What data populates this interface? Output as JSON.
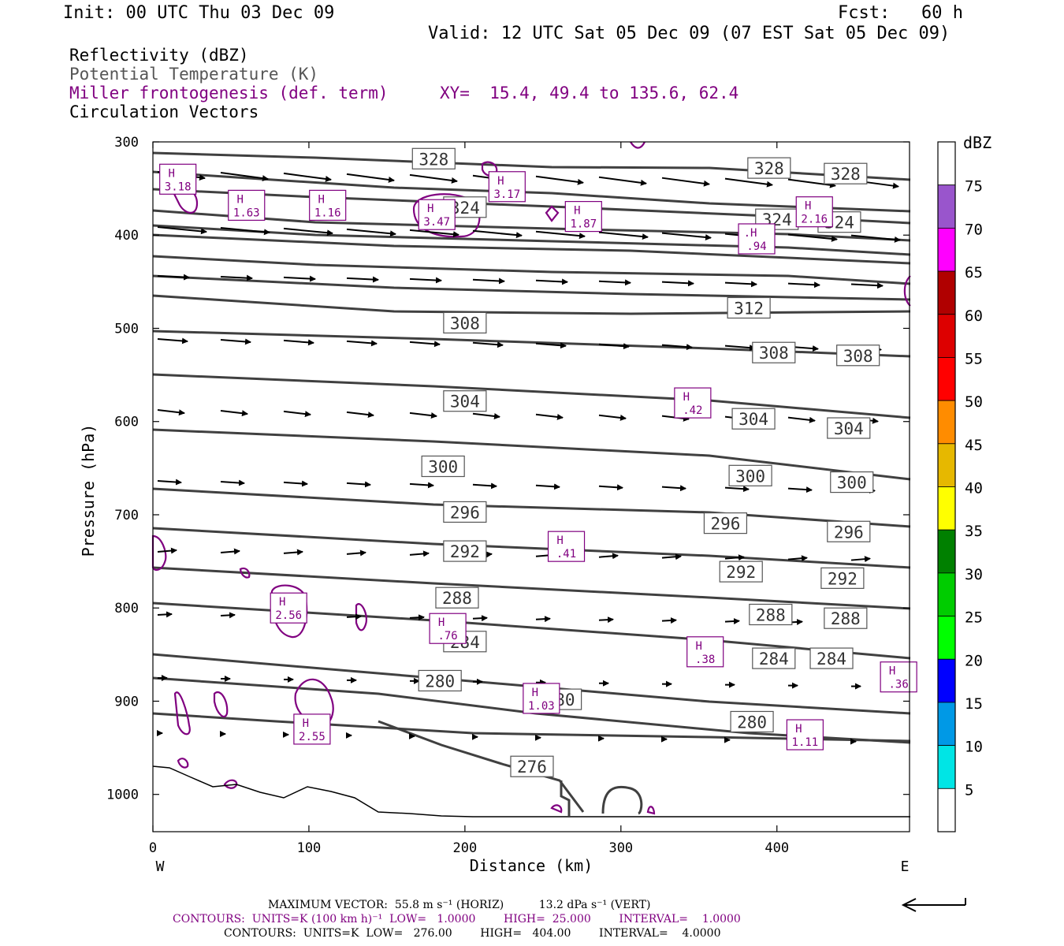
{
  "header": {
    "init": "Init: 00 UTC Thu 03 Dec 09",
    "fcst": "Fcst:   60 h",
    "valid": "Valid: 12 UTC Sat 05 Dec 09 (07 EST Sat 05 Dec 09)"
  },
  "legend": {
    "reflectivity": "Reflectivity (dBZ)",
    "theta": "Potential Temperature (K)",
    "frontogenesis": "Miller frontogenesis (def. term)",
    "xy": "XY=  15.4, 49.4 to 135.6, 62.4",
    "vectors": "Circulation Vectors"
  },
  "colors": {
    "theta": "#404040",
    "frontogenesis": "#800080",
    "terrain": "#000000"
  },
  "chart_data": {
    "type": "cross-section",
    "xlabel": "Distance (km)",
    "ylabel": "Pressure (hPa)",
    "xlim": [
      0,
      485
    ],
    "ylim": [
      1040,
      300
    ],
    "x_ticks": [
      0,
      100,
      200,
      300,
      400
    ],
    "y_ticks": [
      300,
      400,
      500,
      600,
      700,
      800,
      900,
      1000
    ],
    "x_left_label": "W",
    "x_right_label": "E",
    "theta_labels": [
      {
        "text": "328",
        "x": 180,
        "p": 318
      },
      {
        "text": "328",
        "x": 395,
        "p": 328
      },
      {
        "text": "328",
        "x": 444,
        "p": 334
      },
      {
        "text": "324",
        "x": 200,
        "p": 370
      },
      {
        "text": "324",
        "x": 400,
        "p": 383
      },
      {
        "text": "324",
        "x": 440,
        "p": 386
      },
      {
        "text": "312",
        "x": 382,
        "p": 478
      },
      {
        "text": "308",
        "x": 200,
        "p": 494
      },
      {
        "text": "308",
        "x": 398,
        "p": 526
      },
      {
        "text": "308",
        "x": 452,
        "p": 529
      },
      {
        "text": "304",
        "x": 200,
        "p": 578
      },
      {
        "text": "304",
        "x": 385,
        "p": 597
      },
      {
        "text": "304",
        "x": 446,
        "p": 607
      },
      {
        "text": "300",
        "x": 186,
        "p": 648
      },
      {
        "text": "300",
        "x": 383,
        "p": 658
      },
      {
        "text": "300",
        "x": 448,
        "p": 665
      },
      {
        "text": "296",
        "x": 200,
        "p": 697
      },
      {
        "text": "296",
        "x": 367,
        "p": 709
      },
      {
        "text": "296",
        "x": 446,
        "p": 718
      },
      {
        "text": "292",
        "x": 200,
        "p": 739
      },
      {
        "text": "292",
        "x": 377,
        "p": 761
      },
      {
        "text": "292",
        "x": 442,
        "p": 768
      },
      {
        "text": "288",
        "x": 195,
        "p": 789
      },
      {
        "text": "288",
        "x": 396,
        "p": 807
      },
      {
        "text": "288",
        "x": 444,
        "p": 811
      },
      {
        "text": "284",
        "x": 200,
        "p": 836
      },
      {
        "text": "284",
        "x": 398,
        "p": 854
      },
      {
        "text": "284",
        "x": 435,
        "p": 854
      },
      {
        "text": "280",
        "x": 184,
        "p": 878
      },
      {
        "text": "280",
        "x": 261,
        "p": 898
      },
      {
        "text": "280",
        "x": 384,
        "p": 922
      },
      {
        "text": "276",
        "x": 243,
        "p": 970
      }
    ],
    "frontogenesis_maxima": [
      {
        "label": "H",
        "value": "3.18",
        "x": 16,
        "p": 340
      },
      {
        "label": "H",
        "value": "1.63",
        "x": 60,
        "p": 368
      },
      {
        "label": "H",
        "value": "1.16",
        "x": 112,
        "p": 368
      },
      {
        "label": "H",
        "value": "3.47",
        "x": 182,
        "p": 378
      },
      {
        "label": "H",
        "value": "3.17",
        "x": 227,
        "p": 348
      },
      {
        "label": "H",
        "value": "1.87",
        "x": 276,
        "p": 380
      },
      {
        "label": "H",
        "value": "2.16",
        "x": 424,
        "p": 375
      },
      {
        "label": ".H",
        "value": ".94",
        "x": 387,
        "p": 404
      },
      {
        "label": "H",
        "value": ".42",
        "x": 346,
        "p": 580
      },
      {
        "label": "H",
        "value": ".41",
        "x": 265,
        "p": 734
      },
      {
        "label": "H",
        "value": "2.56",
        "x": 87,
        "p": 800
      },
      {
        "label": "H",
        "value": ".76",
        "x": 189,
        "p": 822
      },
      {
        "label": "H",
        "value": ".38",
        "x": 354,
        "p": 847
      },
      {
        "label": "H",
        "value": ".36",
        "x": 478,
        "p": 874
      },
      {
        "label": "H",
        "value": "1.03",
        "x": 249,
        "p": 897
      },
      {
        "label": "H",
        "value": "2.55",
        "x": 102,
        "p": 930
      },
      {
        "label": "H",
        "value": "1.11",
        "x": 418,
        "p": 936
      }
    ]
  },
  "colorbar": {
    "unit": "dBZ",
    "labels": [
      "5",
      "10",
      "15",
      "20",
      "25",
      "30",
      "35",
      "40",
      "45",
      "50",
      "55",
      "60",
      "65",
      "70",
      "75"
    ],
    "colors": [
      "#ffffff",
      "#00e5e5",
      "#0099e6",
      "#0000ff",
      "#00ff00",
      "#00cc00",
      "#008000",
      "#ffff00",
      "#e6b800",
      "#ff8c00",
      "#ff0000",
      "#dd0000",
      "#b00000",
      "#ff00ff",
      "#9955cc",
      "#ffffff"
    ]
  },
  "footer": {
    "max_vector": "MAXIMUM VECTOR:  55.8 m s⁻¹ (HORIZ)          13.2 dPa s⁻¹ (VERT)",
    "contours_fronto": "CONTOURS:  UNITS=K (100 km h)⁻¹  LOW=   1.0000        HIGH=  25.000        INTERVAL=    1.0000",
    "contours_theta": "CONTOURS:  UNITS=K  LOW=   276.00        HIGH=   404.00        INTERVAL=    4.0000"
  }
}
